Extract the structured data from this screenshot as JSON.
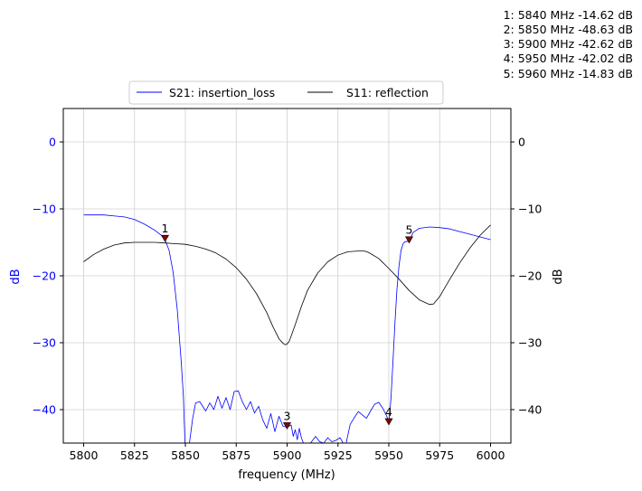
{
  "chart_data": {
    "type": "line",
    "xlabel": "frequency (MHz)",
    "ylabel": "dB",
    "y2label": "dB",
    "xlim": [
      5790,
      6010
    ],
    "ylim": [
      -45,
      5
    ],
    "xticks": [
      5800,
      5825,
      5850,
      5875,
      5900,
      5925,
      5950,
      5975,
      6000
    ],
    "yticks": [
      0,
      -10,
      -20,
      -30,
      -40
    ],
    "grid": true,
    "legend": {
      "placement": "top-center, above plot",
      "columns": 2
    },
    "series": [
      {
        "name": "S21: insertion_loss",
        "color": "#0000ff",
        "axis": "left",
        "x": [
          5800,
          5810,
          5820,
          5825,
          5830,
          5835,
          5838,
          5840,
          5842,
          5844,
          5846,
          5848,
          5849,
          5849.8,
          5852,
          5853.5,
          5855,
          5857,
          5860,
          5862,
          5864,
          5866,
          5868,
          5870,
          5872,
          5874,
          5876,
          5878,
          5880,
          5882,
          5884,
          5886,
          5888,
          5890,
          5892,
          5894,
          5896,
          5898,
          5900,
          5902,
          5903,
          5904,
          5905,
          5906,
          5907,
          5908,
          5910,
          5911.5,
          5914,
          5916,
          5918,
          5920,
          5922,
          5924,
          5926,
          5927.5,
          5929,
          5931,
          5933,
          5935,
          5937,
          5939,
          5941,
          5943,
          5945,
          5947,
          5949,
          5950,
          5951,
          5952,
          5953,
          5954,
          5955,
          5956,
          5957,
          5958,
          5960,
          5962,
          5965,
          5970,
          5975,
          5980,
          5985,
          5990,
          5995,
          6000
        ],
        "y": [
          -10.9,
          -10.9,
          -11.2,
          -11.6,
          -12.3,
          -13.2,
          -13.9,
          -14.62,
          -16.2,
          -19.5,
          -25.0,
          -33.0,
          -38.0,
          -45.0,
          -45.0,
          -41.5,
          -39.0,
          -38.8,
          -40.2,
          -39.0,
          -40.0,
          -38.0,
          -39.8,
          -38.2,
          -40.0,
          -37.3,
          -37.2,
          -38.8,
          -40.0,
          -38.8,
          -40.5,
          -39.5,
          -41.5,
          -42.8,
          -40.6,
          -43.3,
          -41.0,
          -42.5,
          -42.62,
          -42.3,
          -44.0,
          -43.0,
          -44.5,
          -42.8,
          -44.2,
          -45.0,
          -45.0,
          -45.0,
          -44.0,
          -44.8,
          -45.0,
          -44.2,
          -44.8,
          -44.6,
          -44.2,
          -45.0,
          -45.0,
          -42.2,
          -41.2,
          -40.3,
          -40.8,
          -41.3,
          -40.2,
          -39.2,
          -38.9,
          -39.8,
          -41.0,
          -42.02,
          -38.5,
          -33.0,
          -27.0,
          -22.0,
          -18.5,
          -16.2,
          -15.2,
          -14.9,
          -14.83,
          -13.5,
          -12.9,
          -12.7,
          -12.8,
          -13.0,
          -13.4,
          -13.8,
          -14.2,
          -14.6
        ]
      },
      {
        "name": "S11: reflection",
        "color": "#000000",
        "axis": "right",
        "x": [
          5800,
          5805,
          5810,
          5815,
          5820,
          5825,
          5830,
          5835,
          5840,
          5845,
          5850,
          5855,
          5860,
          5865,
          5870,
          5875,
          5880,
          5885,
          5890,
          5893,
          5896,
          5898,
          5899,
          5900,
          5901,
          5902,
          5904,
          5907,
          5910,
          5915,
          5920,
          5925,
          5930,
          5935,
          5938,
          5940,
          5945,
          5950,
          5955,
          5960,
          5965,
          5970,
          5972,
          5975,
          5980,
          5985,
          5990,
          5995,
          6000
        ],
        "y": [
          -17.9,
          -16.8,
          -16.0,
          -15.4,
          -15.1,
          -15.0,
          -15.0,
          -15.0,
          -15.1,
          -15.2,
          -15.3,
          -15.6,
          -16.0,
          -16.6,
          -17.5,
          -18.8,
          -20.5,
          -22.7,
          -25.5,
          -27.6,
          -29.4,
          -30.1,
          -30.3,
          -30.2,
          -29.8,
          -29.0,
          -27.3,
          -24.6,
          -22.2,
          -19.6,
          -17.9,
          -16.9,
          -16.4,
          -16.3,
          -16.3,
          -16.5,
          -17.4,
          -18.9,
          -20.5,
          -22.2,
          -23.6,
          -24.3,
          -24.2,
          -23.1,
          -20.5,
          -18.0,
          -15.8,
          -13.9,
          -12.4
        ]
      }
    ],
    "markers": [
      {
        "label": "1",
        "x": 5840,
        "y": -14.62
      },
      {
        "label": "2",
        "x": 5850,
        "y": -48.63
      },
      {
        "label": "3",
        "x": 5900,
        "y": -42.62
      },
      {
        "label": "4",
        "x": 5950,
        "y": -42.02
      },
      {
        "label": "5",
        "x": 5960,
        "y": -14.83
      }
    ],
    "marker_color": "#8b0000",
    "left_axis_color": "#0000ff",
    "right_axis_color": "#000000",
    "marker_readout": [
      "1: 5840 MHz -14.62 dB",
      "2: 5850 MHz -48.63 dB",
      "3: 5900 MHz -42.62 dB",
      "4: 5950 MHz -42.02 dB",
      "5: 5960 MHz -14.83 dB"
    ]
  }
}
